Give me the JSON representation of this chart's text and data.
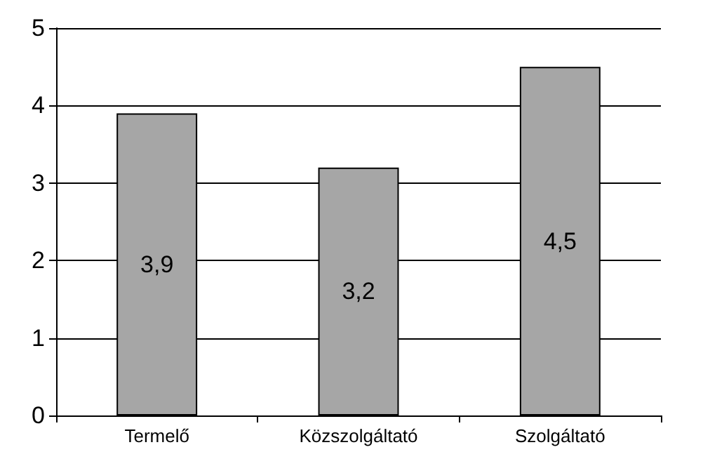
{
  "chart_data": {
    "type": "bar",
    "categories": [
      "Termelő",
      "Közszolgáltató",
      "Szolgáltató"
    ],
    "values": [
      3.9,
      3.2,
      4.5
    ],
    "value_labels": [
      "3,9",
      "3,2",
      "4,5"
    ],
    "color": "#a6a6a6",
    "ylim": [
      0,
      5
    ],
    "yticks": [
      0,
      1,
      2,
      3,
      4,
      5
    ],
    "grid": "y"
  }
}
